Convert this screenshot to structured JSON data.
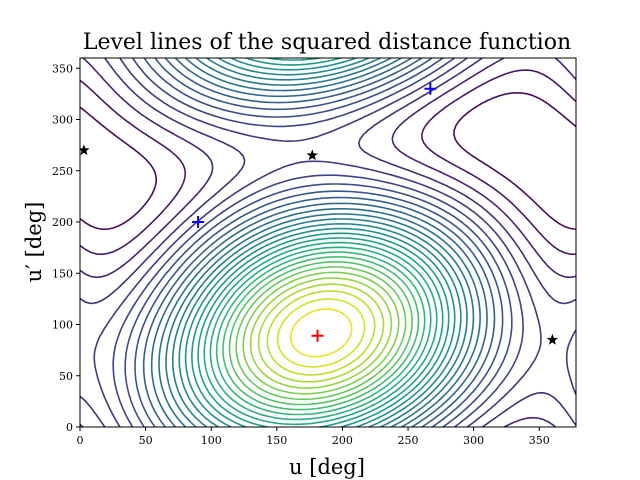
{
  "chart_data": {
    "type": "contour",
    "title": "Level lines of the squared distance function",
    "xlabel": "u [deg]",
    "ylabel": "u′ [deg]",
    "xlim": [
      0,
      360
    ],
    "ylim": [
      0,
      360
    ],
    "xticks": [
      0,
      50,
      100,
      150,
      200,
      250,
      300,
      350
    ],
    "yticks": [
      0,
      50,
      100,
      150,
      200,
      250,
      300,
      350
    ],
    "colormap": "viridis",
    "minima": [
      {
        "x": 90,
        "y": 200,
        "color": "#0000ff"
      },
      {
        "x": 267,
        "y": 330,
        "color": "#0000ff"
      }
    ],
    "maximum": {
      "x": 181,
      "y": 89,
      "color": "#ff0000"
    },
    "saddles": [
      {
        "x": 3,
        "y": 270
      },
      {
        "x": 177,
        "y": 265
      },
      {
        "x": 360,
        "y": 85
      }
    ]
  }
}
